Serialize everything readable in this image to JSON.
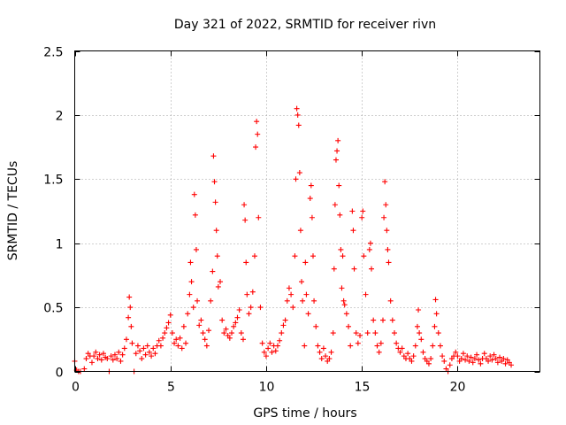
{
  "chart_data": {
    "type": "scatter",
    "title": "Day 321 of 2022, SRMTID for receiver rivn",
    "xlabel": "GPS time / hours",
    "ylabel": "SRMTID / TECUs",
    "xlim": [
      0,
      24.3
    ],
    "ylim": [
      0,
      2.5
    ],
    "xticks": [
      {
        "value": 0,
        "label": "0"
      },
      {
        "value": 5,
        "label": "5"
      },
      {
        "value": 10,
        "label": "10"
      },
      {
        "value": 15,
        "label": "15"
      },
      {
        "value": 20,
        "label": "20"
      }
    ],
    "yticks": [
      {
        "value": 0,
        "label": "0"
      },
      {
        "value": 0.5,
        "label": "0.5"
      },
      {
        "value": 1,
        "label": "1"
      },
      {
        "value": 1.5,
        "label": "1.5"
      },
      {
        "value": 2,
        "label": "2"
      },
      {
        "value": 2.5,
        "label": "2.5"
      }
    ],
    "grid": true,
    "marker": "+",
    "color": "#ff0000",
    "series": [
      {
        "name": "SRMTID",
        "points": [
          [
            0.0,
            0.08
          ],
          [
            0.1,
            0.01
          ],
          [
            0.2,
            0.0
          ],
          [
            0.3,
            0.0
          ],
          [
            0.5,
            0.02
          ],
          [
            0.6,
            0.1
          ],
          [
            0.7,
            0.14
          ],
          [
            0.8,
            0.12
          ],
          [
            0.9,
            0.07
          ],
          [
            1.0,
            0.12
          ],
          [
            1.1,
            0.15
          ],
          [
            1.2,
            0.1
          ],
          [
            1.3,
            0.13
          ],
          [
            1.4,
            0.09
          ],
          [
            1.5,
            0.14
          ],
          [
            1.6,
            0.11
          ],
          [
            1.7,
            0.1
          ],
          [
            1.8,
            0.0
          ],
          [
            1.9,
            0.12
          ],
          [
            2.0,
            0.09
          ],
          [
            2.1,
            0.13
          ],
          [
            2.2,
            0.1
          ],
          [
            2.3,
            0.15
          ],
          [
            2.4,
            0.08
          ],
          [
            2.5,
            0.13
          ],
          [
            2.6,
            0.18
          ],
          [
            2.7,
            0.25
          ],
          [
            2.8,
            0.42
          ],
          [
            2.85,
            0.58
          ],
          [
            2.9,
            0.5
          ],
          [
            2.95,
            0.35
          ],
          [
            3.0,
            0.22
          ],
          [
            3.1,
            0.0
          ],
          [
            3.2,
            0.14
          ],
          [
            3.3,
            0.2
          ],
          [
            3.4,
            0.16
          ],
          [
            3.5,
            0.1
          ],
          [
            3.6,
            0.18
          ],
          [
            3.7,
            0.13
          ],
          [
            3.8,
            0.2
          ],
          [
            3.9,
            0.15
          ],
          [
            4.0,
            0.12
          ],
          [
            4.1,
            0.18
          ],
          [
            4.2,
            0.14
          ],
          [
            4.3,
            0.2
          ],
          [
            4.4,
            0.24
          ],
          [
            4.5,
            0.2
          ],
          [
            4.6,
            0.26
          ],
          [
            4.7,
            0.3
          ],
          [
            4.8,
            0.34
          ],
          [
            4.9,
            0.38
          ],
          [
            5.0,
            0.44
          ],
          [
            5.1,
            0.3
          ],
          [
            5.2,
            0.22
          ],
          [
            5.3,
            0.25
          ],
          [
            5.4,
            0.2
          ],
          [
            5.5,
            0.26
          ],
          [
            5.6,
            0.18
          ],
          [
            5.7,
            0.35
          ],
          [
            5.8,
            0.22
          ],
          [
            5.9,
            0.45
          ],
          [
            6.0,
            0.6
          ],
          [
            6.05,
            0.85
          ],
          [
            6.1,
            0.7
          ],
          [
            6.2,
            0.5
          ],
          [
            6.25,
            1.38
          ],
          [
            6.3,
            1.22
          ],
          [
            6.35,
            0.95
          ],
          [
            6.4,
            0.55
          ],
          [
            6.5,
            0.36
          ],
          [
            6.6,
            0.4
          ],
          [
            6.7,
            0.3
          ],
          [
            6.8,
            0.25
          ],
          [
            6.9,
            0.2
          ],
          [
            7.0,
            0.32
          ],
          [
            7.1,
            0.55
          ],
          [
            7.2,
            0.78
          ],
          [
            7.25,
            1.68
          ],
          [
            7.3,
            1.48
          ],
          [
            7.35,
            1.32
          ],
          [
            7.4,
            1.1
          ],
          [
            7.45,
            0.9
          ],
          [
            7.5,
            0.66
          ],
          [
            7.6,
            0.7
          ],
          [
            7.7,
            0.4
          ],
          [
            7.8,
            0.3
          ],
          [
            7.9,
            0.33
          ],
          [
            8.0,
            0.28
          ],
          [
            8.1,
            0.26
          ],
          [
            8.2,
            0.3
          ],
          [
            8.3,
            0.35
          ],
          [
            8.4,
            0.38
          ],
          [
            8.5,
            0.42
          ],
          [
            8.6,
            0.48
          ],
          [
            8.7,
            0.3
          ],
          [
            8.8,
            0.25
          ],
          [
            8.85,
            1.3
          ],
          [
            8.9,
            1.18
          ],
          [
            8.95,
            0.85
          ],
          [
            9.0,
            0.6
          ],
          [
            9.1,
            0.45
          ],
          [
            9.2,
            0.5
          ],
          [
            9.3,
            0.62
          ],
          [
            9.4,
            0.9
          ],
          [
            9.45,
            1.75
          ],
          [
            9.5,
            1.95
          ],
          [
            9.55,
            1.85
          ],
          [
            9.6,
            1.2
          ],
          [
            9.7,
            0.5
          ],
          [
            9.8,
            0.22
          ],
          [
            9.9,
            0.15
          ],
          [
            10.0,
            0.12
          ],
          [
            10.1,
            0.18
          ],
          [
            10.2,
            0.22
          ],
          [
            10.3,
            0.15
          ],
          [
            10.4,
            0.2
          ],
          [
            10.5,
            0.16
          ],
          [
            10.6,
            0.2
          ],
          [
            10.7,
            0.24
          ],
          [
            10.8,
            0.3
          ],
          [
            10.9,
            0.36
          ],
          [
            11.0,
            0.4
          ],
          [
            11.1,
            0.55
          ],
          [
            11.2,
            0.65
          ],
          [
            11.3,
            0.6
          ],
          [
            11.4,
            0.5
          ],
          [
            11.5,
            0.9
          ],
          [
            11.55,
            1.5
          ],
          [
            11.6,
            2.05
          ],
          [
            11.65,
            2.0
          ],
          [
            11.7,
            1.92
          ],
          [
            11.75,
            1.55
          ],
          [
            11.8,
            1.1
          ],
          [
            11.85,
            0.7
          ],
          [
            11.9,
            0.55
          ],
          [
            12.0,
            0.2
          ],
          [
            12.05,
            0.85
          ],
          [
            12.1,
            0.6
          ],
          [
            12.2,
            0.45
          ],
          [
            12.3,
            1.35
          ],
          [
            12.35,
            1.45
          ],
          [
            12.4,
            1.2
          ],
          [
            12.45,
            0.9
          ],
          [
            12.5,
            0.55
          ],
          [
            12.6,
            0.35
          ],
          [
            12.7,
            0.2
          ],
          [
            12.8,
            0.15
          ],
          [
            12.9,
            0.1
          ],
          [
            13.0,
            0.18
          ],
          [
            13.1,
            0.12
          ],
          [
            13.2,
            0.08
          ],
          [
            13.3,
            0.1
          ],
          [
            13.4,
            0.15
          ],
          [
            13.5,
            0.3
          ],
          [
            13.55,
            0.8
          ],
          [
            13.6,
            1.3
          ],
          [
            13.65,
            1.65
          ],
          [
            13.7,
            1.72
          ],
          [
            13.75,
            1.8
          ],
          [
            13.8,
            1.45
          ],
          [
            13.85,
            1.22
          ],
          [
            13.9,
            0.95
          ],
          [
            13.95,
            0.65
          ],
          [
            14.0,
            0.9
          ],
          [
            14.05,
            0.55
          ],
          [
            14.1,
            0.52
          ],
          [
            14.2,
            0.45
          ],
          [
            14.3,
            0.35
          ],
          [
            14.4,
            0.2
          ],
          [
            14.5,
            1.25
          ],
          [
            14.55,
            1.1
          ],
          [
            14.6,
            0.8
          ],
          [
            14.7,
            0.3
          ],
          [
            14.8,
            0.22
          ],
          [
            14.9,
            0.28
          ],
          [
            15.0,
            1.2
          ],
          [
            15.05,
            1.25
          ],
          [
            15.1,
            0.9
          ],
          [
            15.2,
            0.6
          ],
          [
            15.3,
            0.3
          ],
          [
            15.4,
            0.95
          ],
          [
            15.45,
            1.0
          ],
          [
            15.5,
            0.8
          ],
          [
            15.6,
            0.4
          ],
          [
            15.7,
            0.3
          ],
          [
            15.8,
            0.2
          ],
          [
            15.9,
            0.15
          ],
          [
            16.0,
            0.22
          ],
          [
            16.1,
            0.4
          ],
          [
            16.15,
            1.2
          ],
          [
            16.2,
            1.48
          ],
          [
            16.25,
            1.3
          ],
          [
            16.3,
            1.1
          ],
          [
            16.35,
            0.95
          ],
          [
            16.4,
            0.85
          ],
          [
            16.5,
            0.55
          ],
          [
            16.6,
            0.4
          ],
          [
            16.7,
            0.3
          ],
          [
            16.8,
            0.22
          ],
          [
            16.9,
            0.18
          ],
          [
            17.0,
            0.15
          ],
          [
            17.1,
            0.18
          ],
          [
            17.2,
            0.12
          ],
          [
            17.3,
            0.1
          ],
          [
            17.4,
            0.14
          ],
          [
            17.5,
            0.1
          ],
          [
            17.6,
            0.08
          ],
          [
            17.7,
            0.12
          ],
          [
            17.8,
            0.2
          ],
          [
            17.9,
            0.35
          ],
          [
            17.95,
            0.48
          ],
          [
            18.0,
            0.3
          ],
          [
            18.1,
            0.25
          ],
          [
            18.2,
            0.15
          ],
          [
            18.3,
            0.1
          ],
          [
            18.4,
            0.08
          ],
          [
            18.5,
            0.06
          ],
          [
            18.6,
            0.1
          ],
          [
            18.7,
            0.2
          ],
          [
            18.8,
            0.35
          ],
          [
            18.85,
            0.56
          ],
          [
            18.9,
            0.45
          ],
          [
            19.0,
            0.3
          ],
          [
            19.1,
            0.2
          ],
          [
            19.2,
            0.12
          ],
          [
            19.3,
            0.08
          ],
          [
            19.4,
            0.02
          ],
          [
            19.5,
            0.0
          ],
          [
            19.6,
            0.05
          ],
          [
            19.7,
            0.1
          ],
          [
            19.8,
            0.12
          ],
          [
            19.9,
            0.15
          ],
          [
            20.0,
            0.12
          ],
          [
            20.1,
            0.08
          ],
          [
            20.2,
            0.1
          ],
          [
            20.3,
            0.14
          ],
          [
            20.4,
            0.09
          ],
          [
            20.5,
            0.12
          ],
          [
            20.6,
            0.08
          ],
          [
            20.7,
            0.11
          ],
          [
            20.8,
            0.07
          ],
          [
            20.9,
            0.1
          ],
          [
            21.0,
            0.13
          ],
          [
            21.1,
            0.09
          ],
          [
            21.2,
            0.06
          ],
          [
            21.3,
            0.1
          ],
          [
            21.4,
            0.14
          ],
          [
            21.5,
            0.1
          ],
          [
            21.6,
            0.08
          ],
          [
            21.7,
            0.12
          ],
          [
            21.8,
            0.09
          ],
          [
            21.9,
            0.13
          ],
          [
            22.0,
            0.1
          ],
          [
            22.1,
            0.07
          ],
          [
            22.2,
            0.11
          ],
          [
            22.3,
            0.08
          ],
          [
            22.4,
            0.1
          ],
          [
            22.5,
            0.06
          ],
          [
            22.6,
            0.09
          ],
          [
            22.7,
            0.07
          ],
          [
            22.8,
            0.05
          ]
        ]
      }
    ]
  }
}
